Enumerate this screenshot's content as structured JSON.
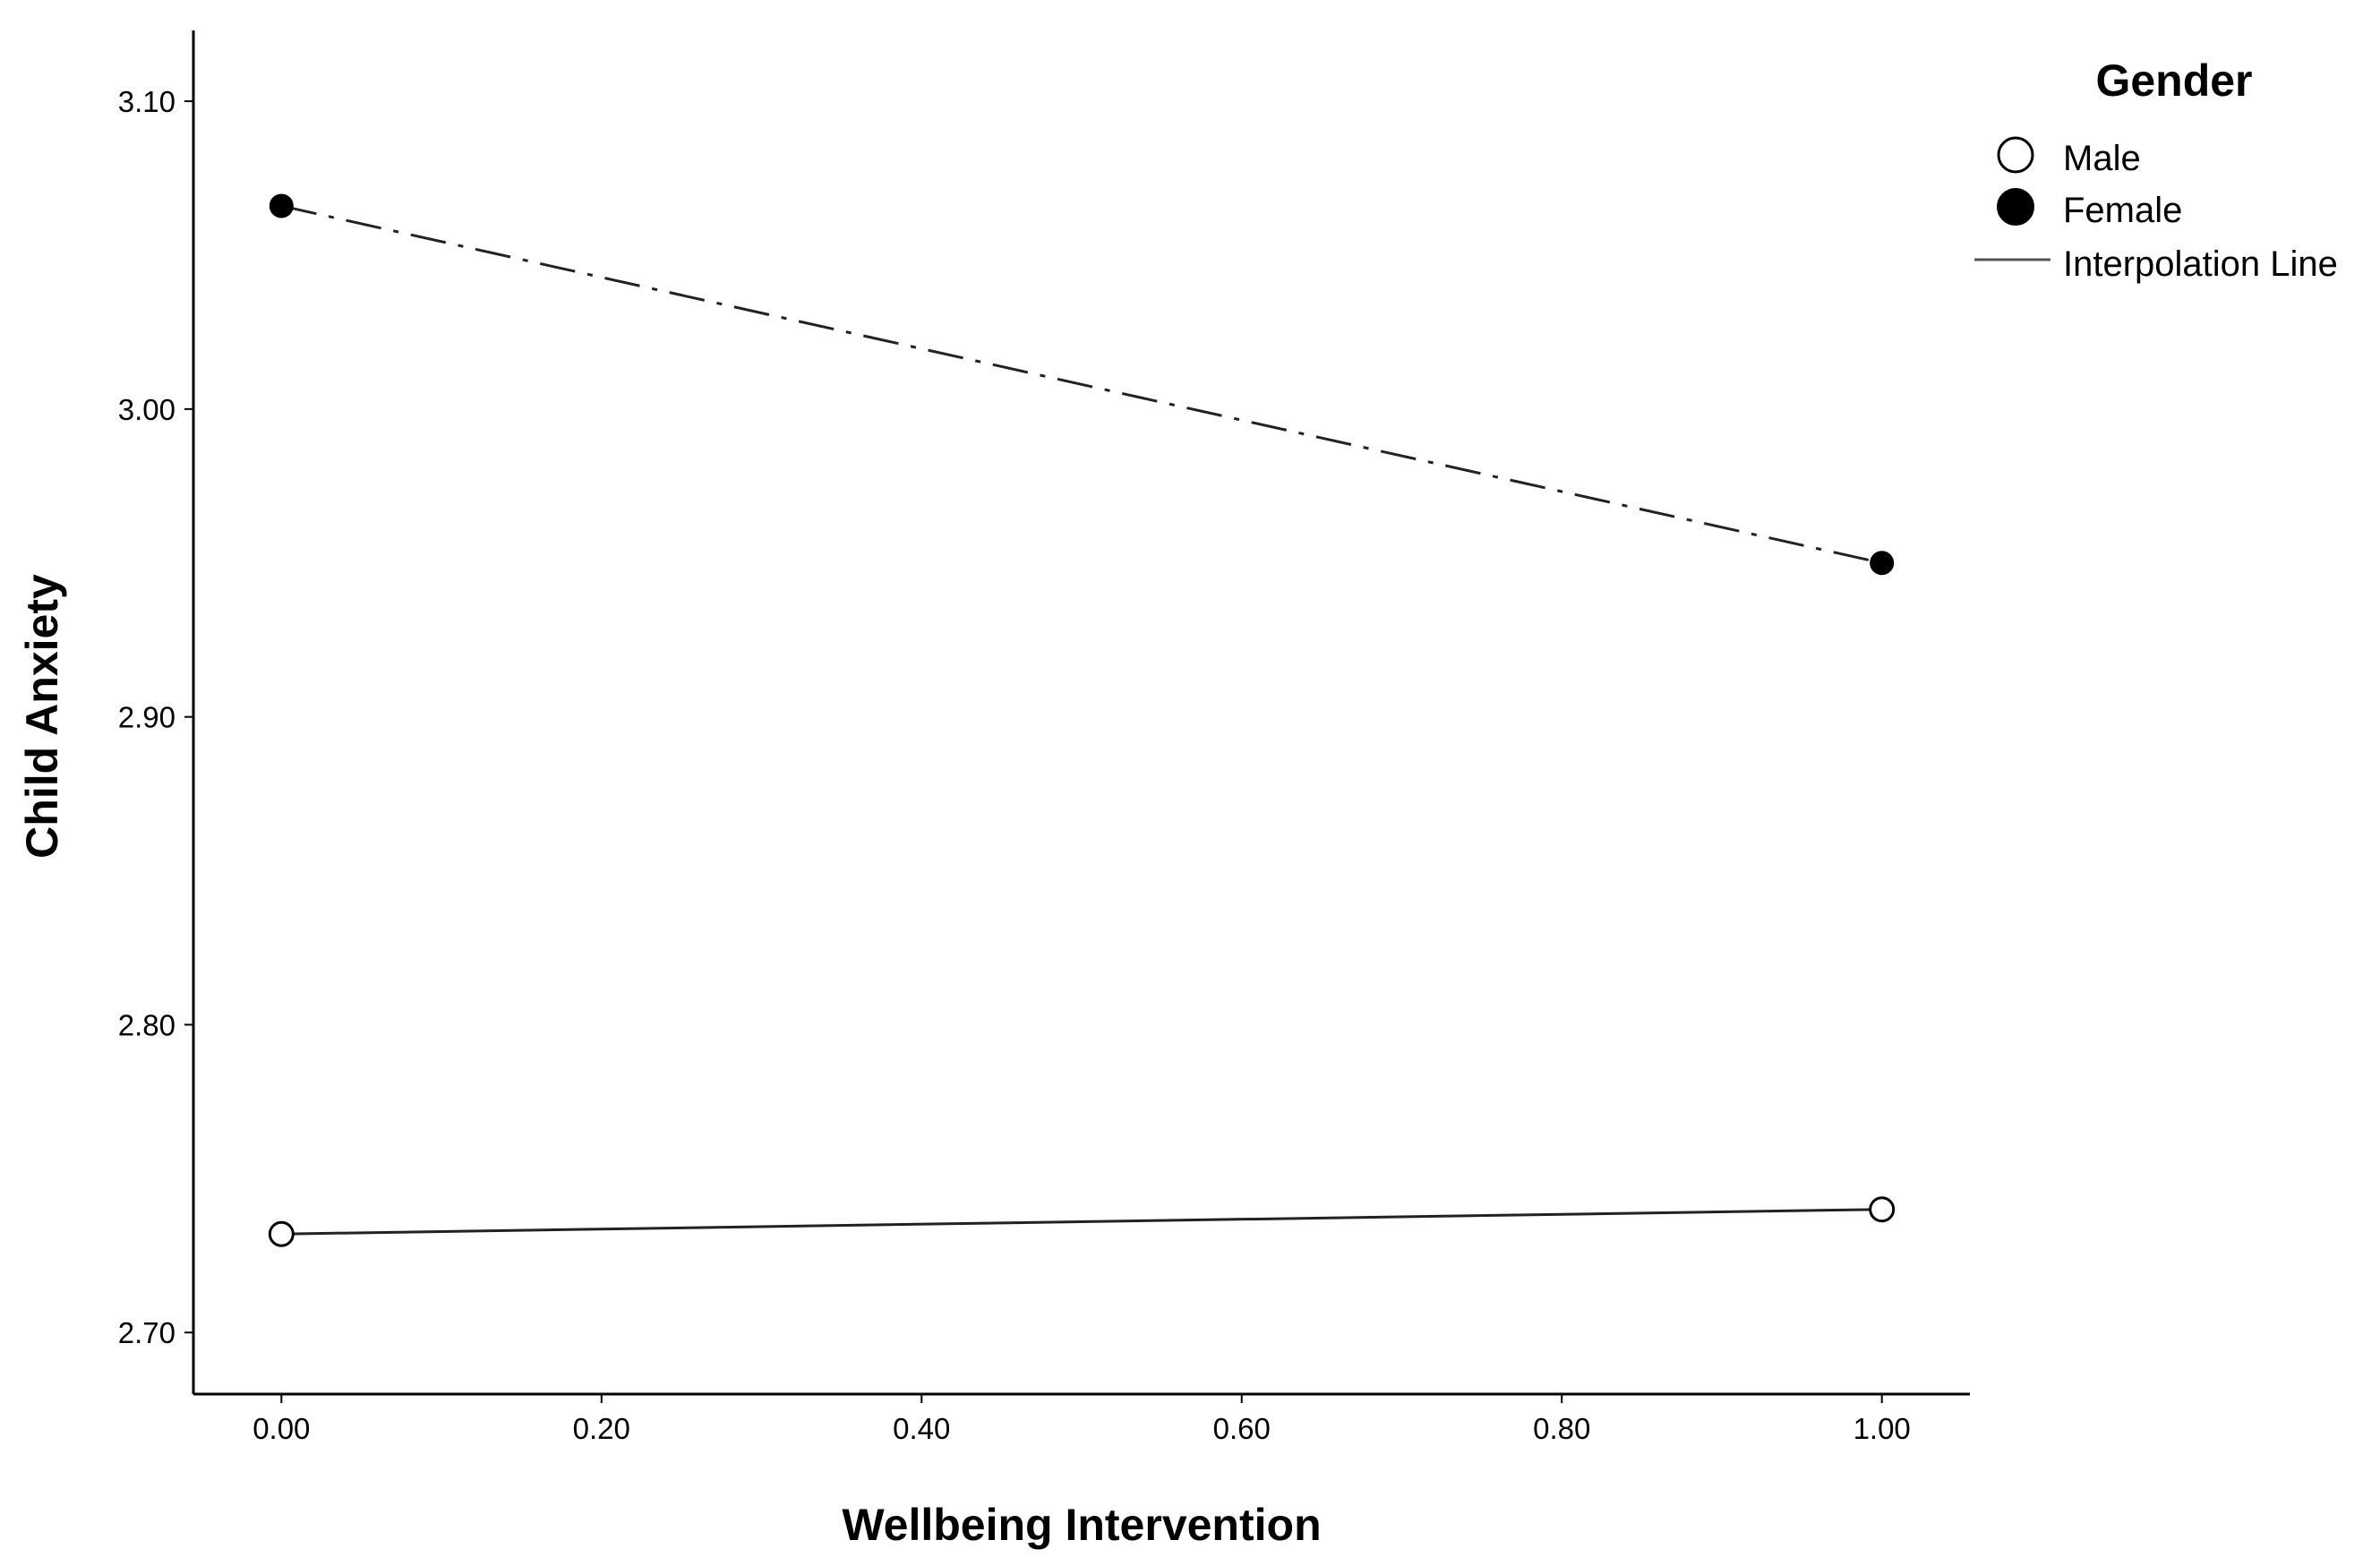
{
  "chart_data": {
    "type": "line",
    "title": "",
    "xlabel": "Wellbeing Intervention",
    "ylabel": "Child Anxiety",
    "xlim": [
      -0.055,
      1.055
    ],
    "ylim": [
      2.68,
      3.123
    ],
    "x_ticks": [
      0.0,
      0.2,
      0.4,
      0.6,
      0.8,
      1.0
    ],
    "x_tick_labels": [
      "0.00",
      "0.20",
      "0.40",
      "0.60",
      "0.80",
      "1.00"
    ],
    "y_ticks": [
      2.7,
      2.8,
      2.9,
      3.0,
      3.1
    ],
    "y_tick_labels": [
      "2.70",
      "2.80",
      "2.90",
      "3.00",
      "3.10"
    ],
    "grid": false,
    "legend_position": "top-right",
    "legend": {
      "title": "Gender",
      "entries": [
        {
          "label": "Male",
          "marker": "open-circle"
        },
        {
          "label": "Female",
          "marker": "filled-circle"
        },
        {
          "label": "Interpolation Line",
          "marker": "line"
        }
      ]
    },
    "series": [
      {
        "name": "Male",
        "x": [
          0.0,
          1.0
        ],
        "y": [
          2.732,
          2.74
        ],
        "marker": "open-circle",
        "line_style": "solid",
        "color": "#000000"
      },
      {
        "name": "Female",
        "x": [
          0.0,
          1.0
        ],
        "y": [
          3.066,
          2.95
        ],
        "marker": "filled-circle",
        "line_style": "dash-dot",
        "color": "#000000"
      }
    ]
  }
}
